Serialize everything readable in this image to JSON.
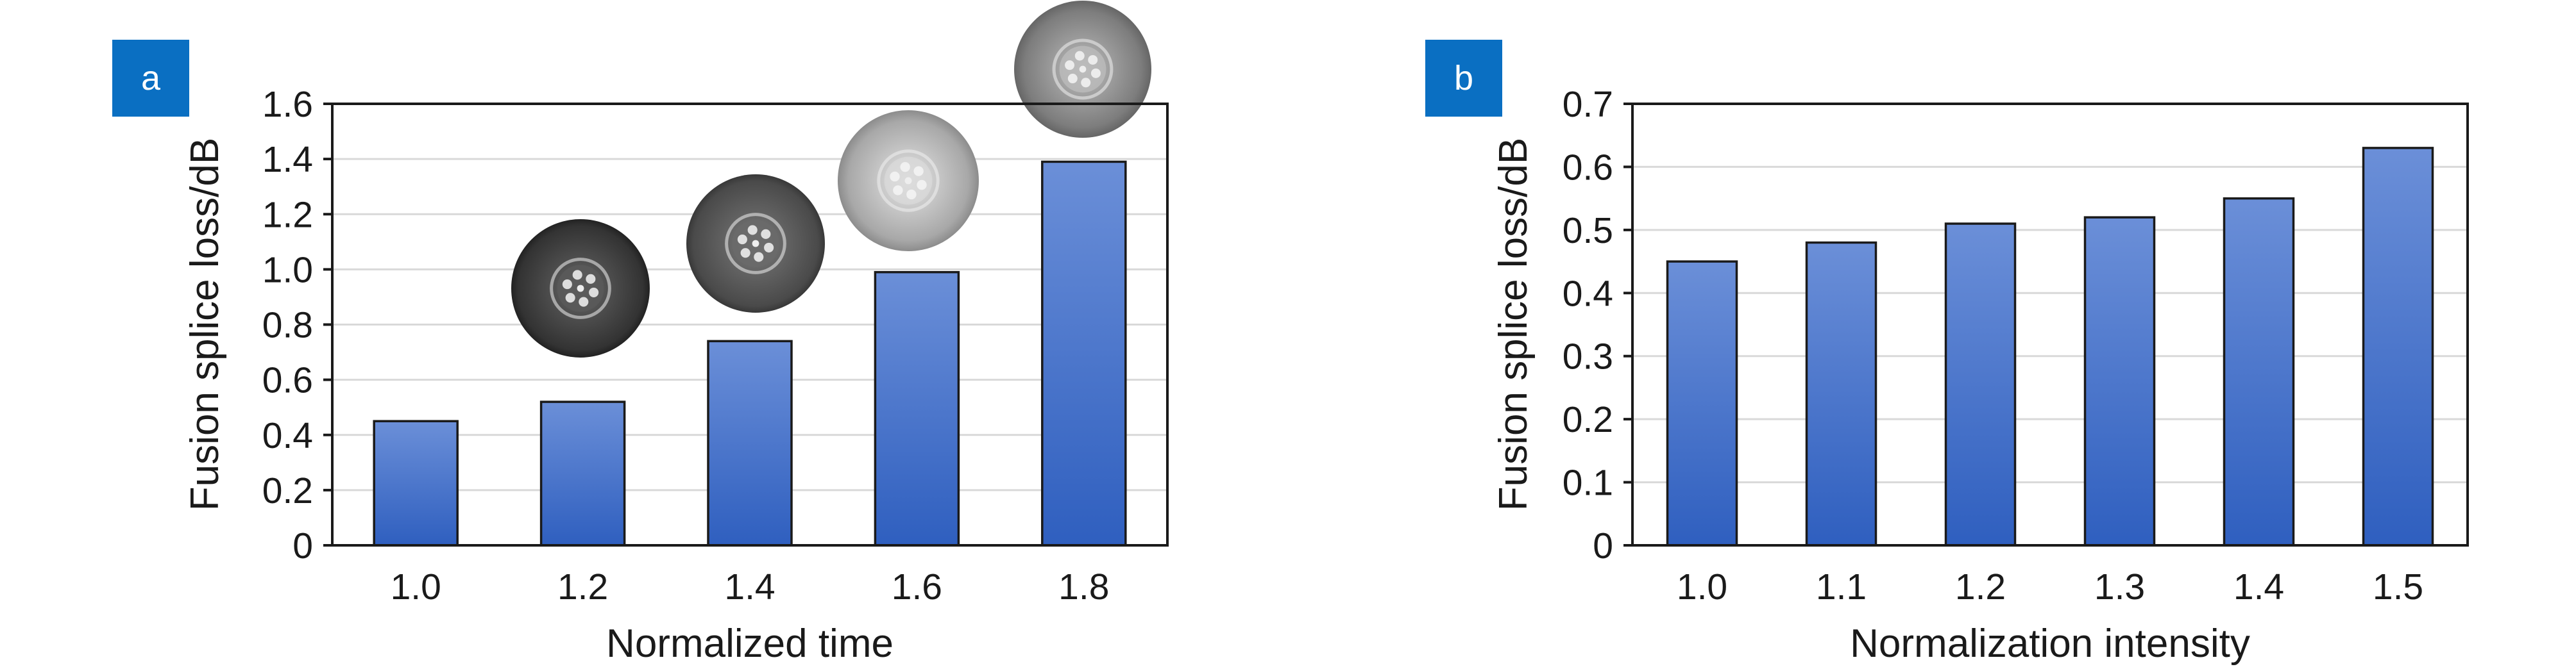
{
  "colors": {
    "panel_label_bg": "#0a6fc2",
    "bar_top": "#6b8fd8",
    "bar_bottom": "#2f5fbf",
    "grid": "#d9d9d9"
  },
  "chart_data": [
    {
      "type": "bar",
      "panel_label": "a",
      "categories": [
        "1.0",
        "1.2",
        "1.4",
        "1.6",
        "1.8"
      ],
      "values": [
        0.45,
        0.52,
        0.74,
        0.99,
        1.39
      ],
      "xlabel": "Normalized time",
      "ylabel": "Fusion splice loss/dB",
      "ylim": [
        0,
        1.6
      ],
      "yticks": [
        "0",
        "0.2",
        "0.4",
        "0.6",
        "0.8",
        "1.0",
        "1.2",
        "1.4",
        "1.6"
      ],
      "grid": true,
      "insets": [
        "fiber-cross-section-icon",
        "fiber-cross-section-icon",
        "fiber-cross-section-icon",
        "fiber-cross-section-icon"
      ]
    },
    {
      "type": "bar",
      "panel_label": "b",
      "categories": [
        "1.0",
        "1.1",
        "1.2",
        "1.3",
        "1.4",
        "1.5"
      ],
      "values": [
        0.45,
        0.48,
        0.51,
        0.52,
        0.55,
        0.63
      ],
      "xlabel": "Normalization intensity",
      "ylabel": "Fusion splice loss/dB",
      "ylim": [
        0,
        0.7
      ],
      "yticks": [
        "0",
        "0.1",
        "0.2",
        "0.3",
        "0.4",
        "0.5",
        "0.6",
        "0.7"
      ],
      "grid": true
    }
  ]
}
